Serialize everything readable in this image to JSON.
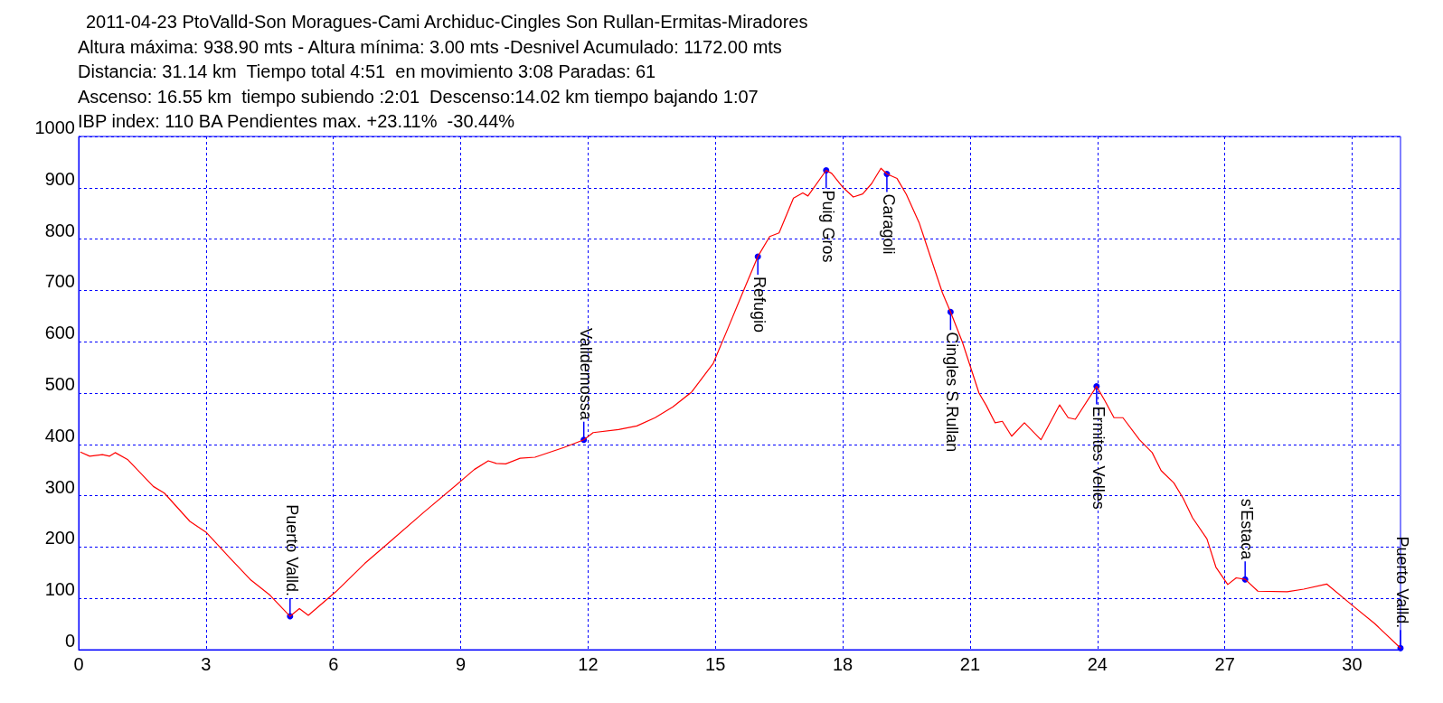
{
  "chart_data": {
    "type": "line",
    "title": "2011-04-23 PtoValld-Son Moragues-Cami Archiduc-Cingles Son Rullan-Ermitas-Miradores",
    "subtitle": "Altura máxima: 938.90 mts - Altura mínima: 3.00 mts -Desnivel Acumulado: 1172.00 mts\nDistancia: 31.14 km  Tiempo total 4:51  en movimiento 3:08 Paradas: 61\nAscenso: 16.55 km  tiempo subiendo :2:01  Descenso:14.02 km tiempo bajando 1:07\nIBP index: 110 BA Pendientes max. +23.11%  -30.44%",
    "series": [
      {
        "color": "#ff0000",
        "x": [
          0.04,
          0.26,
          0.56,
          0.73,
          0.86,
          1.16,
          1.76,
          2.02,
          2.62,
          3.0,
          3.57,
          4.04,
          4.51,
          4.98,
          5.2,
          5.41,
          6.06,
          6.74,
          7.26,
          8.12,
          9.01,
          9.32,
          9.65,
          9.84,
          10.06,
          10.4,
          10.75,
          11.43,
          11.9,
          12.12,
          12.72,
          13.15,
          13.58,
          14.0,
          14.44,
          14.95,
          15.3,
          15.64,
          16.0,
          16.28,
          16.5,
          16.84,
          17.06,
          17.18,
          17.61,
          17.74,
          18.0,
          18.25,
          18.47,
          18.68,
          18.9,
          19.04,
          19.28,
          19.5,
          19.8,
          20.1,
          20.35,
          20.54,
          20.82,
          21.21,
          21.38,
          21.59,
          21.76,
          21.98,
          22.28,
          22.67,
          23.11,
          23.31,
          23.48,
          23.98,
          24.17,
          24.39,
          24.6,
          24.99,
          25.29,
          25.5,
          25.8,
          26.02,
          26.24,
          26.58,
          26.79,
          27.07,
          27.27,
          27.48,
          27.78,
          28.47,
          28.86,
          29.4,
          30.01,
          30.53,
          31.14
        ],
        "values": [
          385,
          377,
          380,
          377,
          384,
          370,
          318,
          305,
          250,
          229,
          178,
          137,
          106,
          65,
          80,
          67,
          113,
          168,
          205,
          267,
          329,
          351,
          368,
          363,
          362,
          373,
          375,
          394,
          409,
          423,
          429,
          436,
          452,
          473,
          502,
          558,
          627,
          695,
          766,
          805,
          812,
          880,
          890,
          884,
          934,
          928,
          901,
          882,
          888,
          908,
          938,
          927,
          918,
          887,
          832,
          757,
          695,
          658,
          599,
          500,
          476,
          442,
          445,
          416,
          442,
          409,
          477,
          452,
          449,
          513,
          486,
          452,
          452,
          409,
          384,
          349,
          325,
          295,
          257,
          216,
          161,
          127,
          140,
          137,
          114,
          113,
          118,
          128,
          86,
          51,
          3
        ]
      }
    ],
    "annotations": [
      {
        "text": "Puerto Valld.",
        "x": 4.98,
        "y": 65
      },
      {
        "text": "Valldemossa",
        "x": 11.9,
        "y": 409
      },
      {
        "text": "Refugio",
        "x": 16.0,
        "y": 766
      },
      {
        "text": "Puig Gros",
        "x": 17.61,
        "y": 934
      },
      {
        "text": "Caragoli",
        "x": 19.04,
        "y": 927
      },
      {
        "text": "Cingles S.Rullan",
        "x": 20.54,
        "y": 658
      },
      {
        "text": "Ermites Velles",
        "x": 23.98,
        "y": 513
      },
      {
        "text": "s'Estaca",
        "x": 27.48,
        "y": 137
      },
      {
        "text": "Puerto Valld.",
        "x": 31.14,
        "y": 3
      }
    ],
    "xlim": [
      0,
      31.14
    ],
    "xticks": [
      0,
      3,
      6,
      9,
      12,
      15,
      18,
      21,
      24,
      27,
      30
    ],
    "ylim": [
      0,
      1000
    ],
    "yticks": [
      0,
      100,
      200,
      300,
      400,
      500,
      600,
      700,
      800,
      900,
      1000
    ],
    "grid": true,
    "marker": "none",
    "line_style": "solid"
  }
}
